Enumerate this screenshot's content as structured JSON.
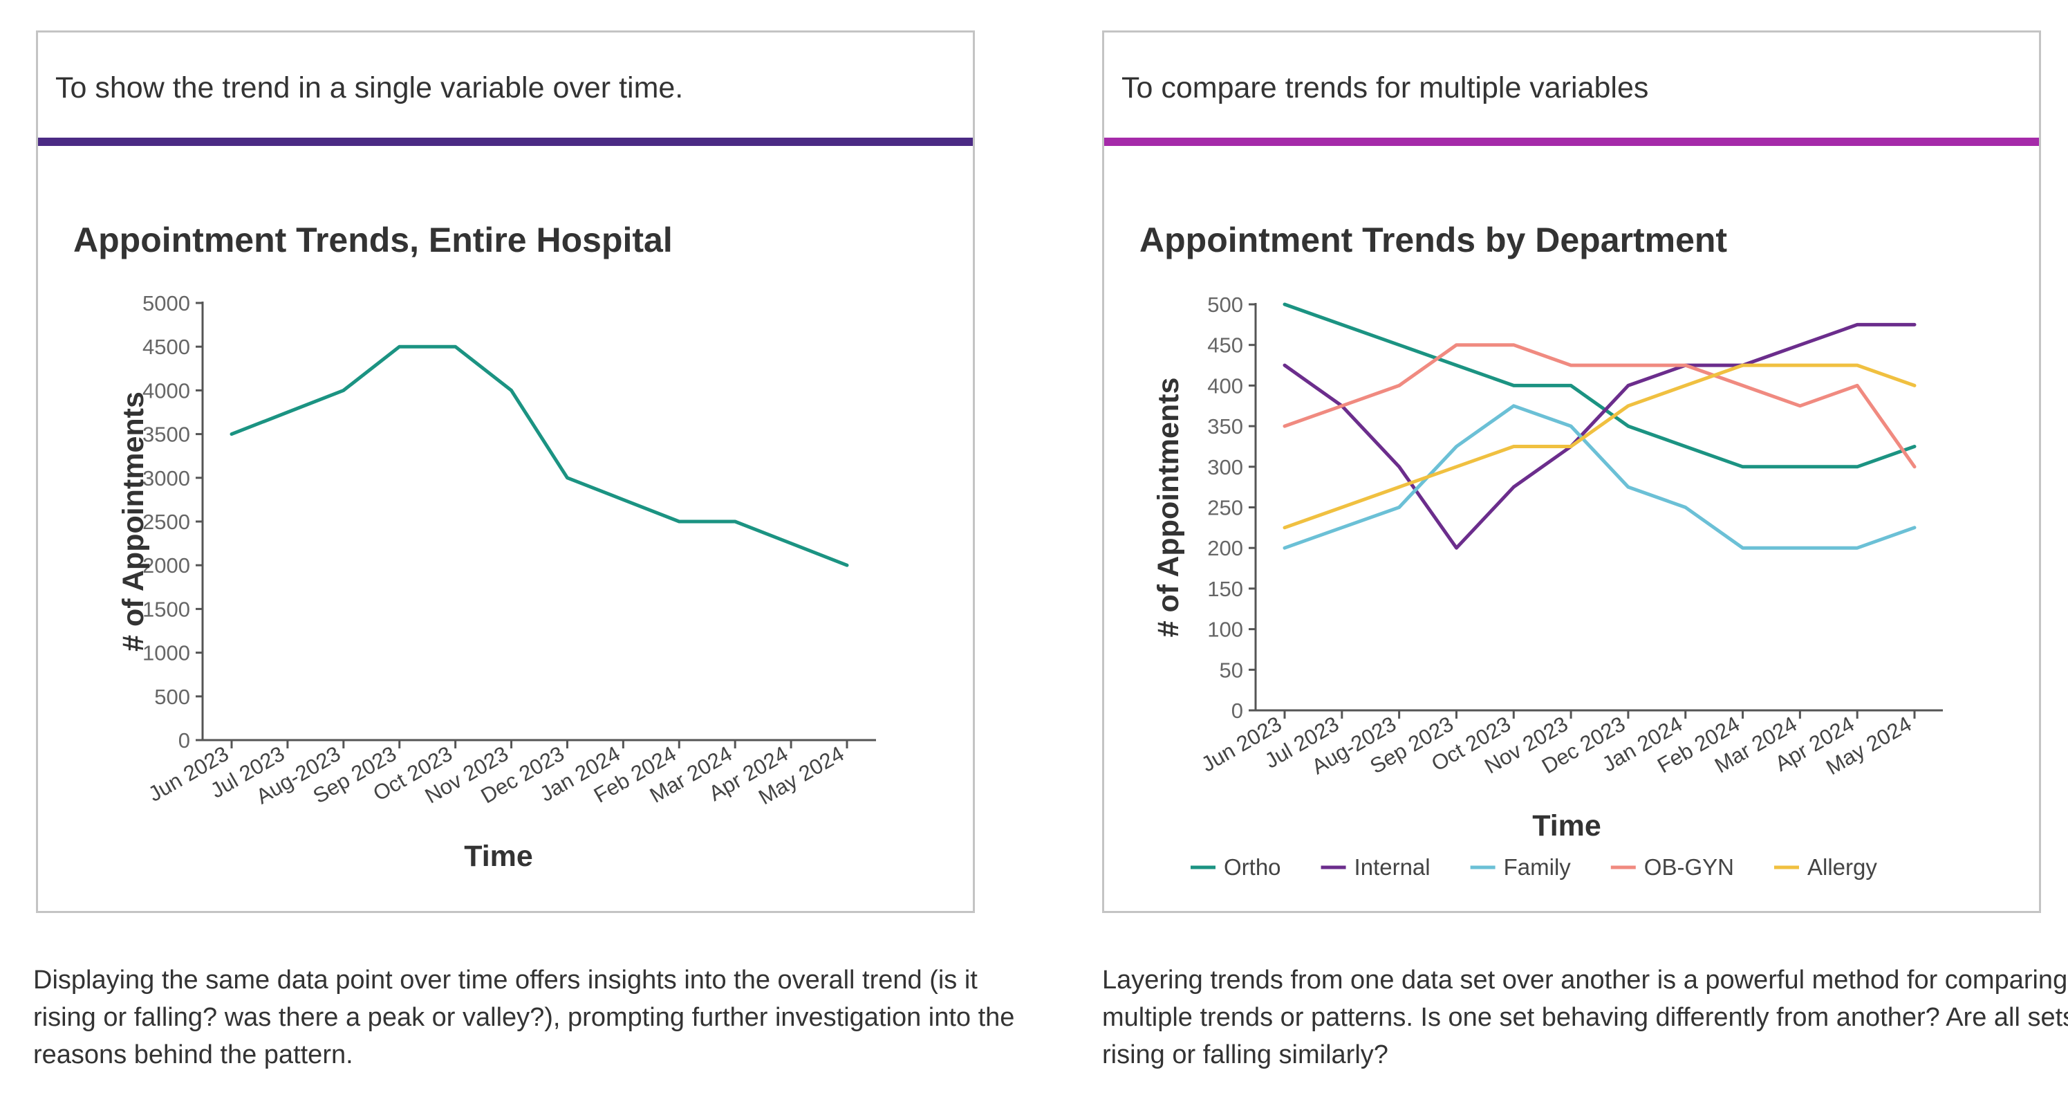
{
  "cards": {
    "left": {
      "header": "To show the trend in a single variable over time.",
      "rule_color": "#4b2a84",
      "description": "Displaying the same data point over time offers insights into the overall trend (is it rising or falling? was there a peak or valley?), prompting further investigation into the reasons behind the pattern."
    },
    "right": {
      "header": "To compare trends for multiple variables",
      "rule_color": "#a52aa9",
      "description": "Layering trends from one data set over another is a powerful method for comparing multiple trends or patterns. Is one set behaving differently from another? Are all sets rising or falling similarly?"
    }
  },
  "chart_data": [
    {
      "type": "line",
      "title": "Appointment Trends, Entire Hospital",
      "xlabel": "Time",
      "ylabel": "# of Appointments",
      "categories": [
        "Jun 2023",
        "Jul 2023",
        "Aug-2023",
        "Sep 2023",
        "Oct 2023",
        "Nov 2023",
        "Dec 2023",
        "Jan 2024",
        "Feb 2024",
        "Mar 2024",
        "Apr 2024",
        "May 2024"
      ],
      "ylim": [
        0,
        5000
      ],
      "yticks": [
        0,
        500,
        1000,
        1500,
        2000,
        2500,
        3000,
        3500,
        4000,
        4500,
        5000
      ],
      "grid": false,
      "series": [
        {
          "name": "Entire Hospital",
          "color": "#1b9382",
          "values": [
            3500,
            3750,
            4000,
            4500,
            4500,
            4000,
            3000,
            2750,
            2500,
            2500,
            2250,
            2000
          ]
        }
      ]
    },
    {
      "type": "line",
      "title": "Appointment Trends by Department",
      "xlabel": "Time",
      "ylabel": "# of Appointments",
      "categories": [
        "Jun 2023",
        "Jul 2023",
        "Aug-2023",
        "Sep 2023",
        "Oct 2023",
        "Nov 2023",
        "Dec 2023",
        "Jan 2024",
        "Feb 2024",
        "Mar 2024",
        "Apr 2024",
        "May 2024"
      ],
      "ylim": [
        0,
        500
      ],
      "yticks": [
        0,
        50,
        100,
        150,
        200,
        250,
        300,
        350,
        400,
        450,
        500
      ],
      "grid": false,
      "legend_position": "bottom",
      "series": [
        {
          "name": "Ortho",
          "color": "#1b9382",
          "values": [
            500,
            475,
            450,
            425,
            400,
            400,
            350,
            325,
            300,
            300,
            300,
            325
          ]
        },
        {
          "name": "Internal",
          "color": "#6b2d8c",
          "values": [
            425,
            375,
            300,
            200,
            275,
            325,
            400,
            425,
            425,
            450,
            475,
            475
          ]
        },
        {
          "name": "Family",
          "color": "#6bc0d6",
          "values": [
            200,
            225,
            250,
            325,
            375,
            350,
            275,
            250,
            200,
            200,
            200,
            225
          ]
        },
        {
          "name": "OB-GYN",
          "color": "#f08a80",
          "values": [
            350,
            375,
            400,
            450,
            450,
            425,
            425,
            425,
            400,
            375,
            400,
            300
          ]
        },
        {
          "name": "Allergy",
          "color": "#f0c040",
          "values": [
            225,
            250,
            275,
            300,
            325,
            325,
            375,
            400,
            425,
            425,
            425,
            400
          ]
        }
      ]
    }
  ]
}
